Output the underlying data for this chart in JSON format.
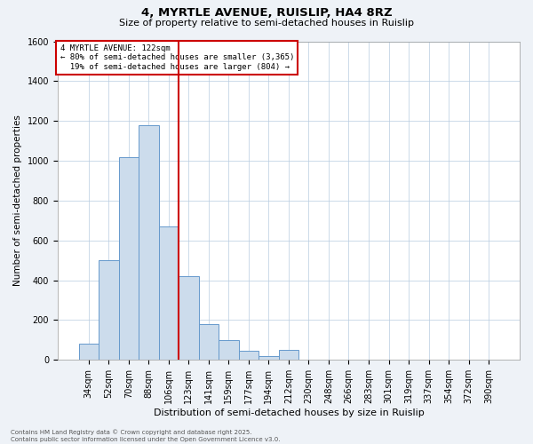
{
  "title1": "4, MYRTLE AVENUE, RUISLIP, HA4 8RZ",
  "title2": "Size of property relative to semi-detached houses in Ruislip",
  "xlabel": "Distribution of semi-detached houses by size in Ruislip",
  "ylabel": "Number of semi-detached properties",
  "categories": [
    "34sqm",
    "52sqm",
    "70sqm",
    "88sqm",
    "106sqm",
    "123sqm",
    "141sqm",
    "159sqm",
    "177sqm",
    "194sqm",
    "212sqm",
    "230sqm",
    "248sqm",
    "266sqm",
    "283sqm",
    "301sqm",
    "319sqm",
    "337sqm",
    "354sqm",
    "372sqm",
    "390sqm"
  ],
  "values": [
    80,
    500,
    1020,
    1180,
    670,
    420,
    180,
    100,
    45,
    20,
    50,
    0,
    0,
    0,
    0,
    0,
    0,
    0,
    0,
    0,
    0
  ],
  "bar_color": "#ccdcec",
  "bar_edge_color": "#6699cc",
  "vline_color": "#cc0000",
  "vline_x": 4.5,
  "property_size": "122sqm",
  "property_name": "4 MYRTLE AVENUE",
  "pct_smaller": "80%",
  "count_smaller": "3,365",
  "pct_larger": "19%",
  "count_larger": "804",
  "ylim": [
    0,
    1600
  ],
  "yticks": [
    0,
    200,
    400,
    600,
    800,
    1000,
    1200,
    1400,
    1600
  ],
  "annotation_box_color": "#cc0000",
  "footer_line1": "Contains HM Land Registry data © Crown copyright and database right 2025.",
  "footer_line2": "Contains public sector information licensed under the Open Government Licence v3.0.",
  "bg_color": "#eef2f7",
  "plot_bg_color": "#ffffff",
  "title1_fontsize": 9.5,
  "title2_fontsize": 8,
  "xlabel_fontsize": 8,
  "ylabel_fontsize": 7.5,
  "tick_fontsize": 7,
  "anno_fontsize": 6.5,
  "footer_fontsize": 5
}
